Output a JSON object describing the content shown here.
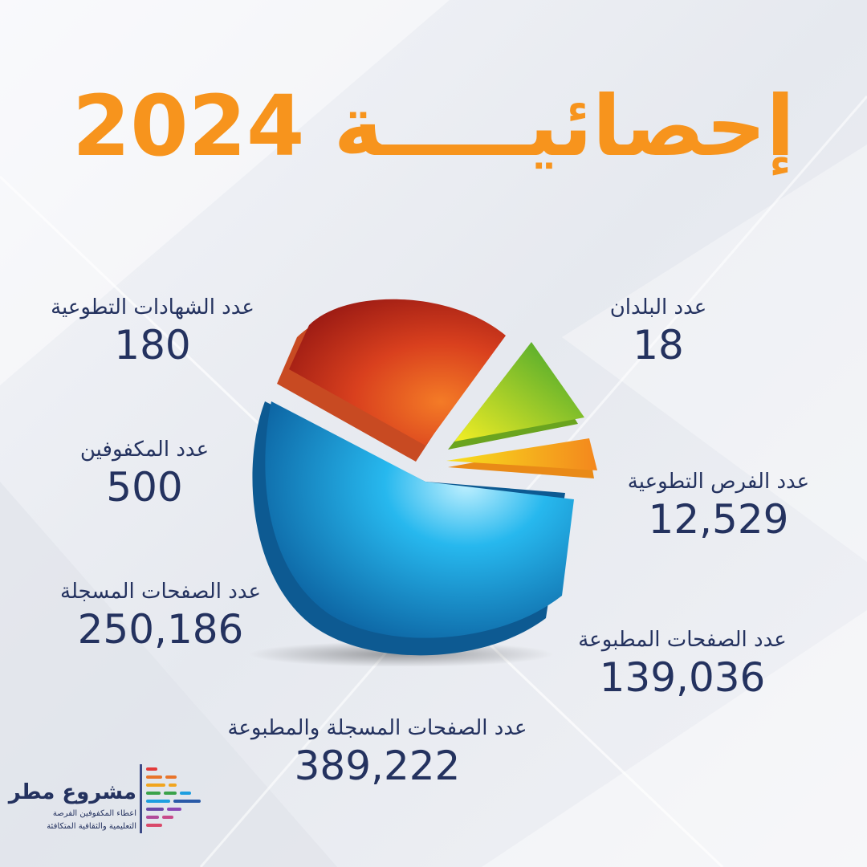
{
  "title": "إحصائيـــــة 2024",
  "colors": {
    "title": "#f7941d",
    "text": "#24325f"
  },
  "stats": {
    "countries": {
      "label": "عدد البلدان",
      "value": "18"
    },
    "certificates": {
      "label": "عدد الشهادات التطوعية",
      "value": "180"
    },
    "blind": {
      "label": "عدد المكفوفين",
      "value": "500"
    },
    "opportunities": {
      "label": "عدد الفرص التطوعية",
      "value": "12,529"
    },
    "recorded_pages": {
      "label": "عدد الصفحات المسجلة",
      "value": "250,186"
    },
    "printed_pages": {
      "label": "عدد الصفحات المطبوعة",
      "value": "139,036"
    },
    "total_pages": {
      "label": "عدد الصفحات المسجلة والمطبوعة",
      "value": "389,222"
    }
  },
  "logo": {
    "name": "مشروع مطر",
    "tagline_1": "اعطاء المكفوفين الفرصة",
    "tagline_2": "التعليمية والثقافية المتكافئة"
  },
  "pie_segments": [
    {
      "name": "blue",
      "color": "#1fa7e0"
    },
    {
      "name": "red",
      "color": "#d63d20"
    },
    {
      "name": "green",
      "color": "#7cc42a"
    },
    {
      "name": "yellow",
      "color": "#f7b21b"
    }
  ]
}
